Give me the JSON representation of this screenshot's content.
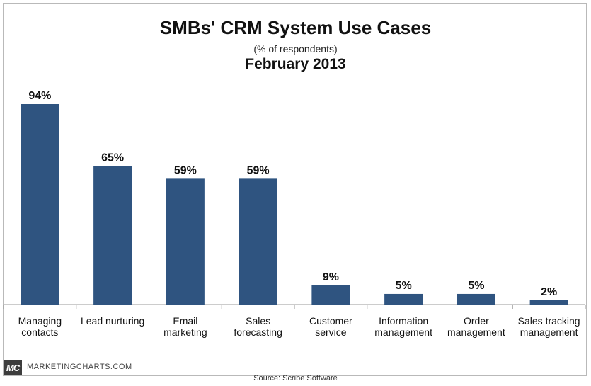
{
  "chart_data": {
    "type": "bar",
    "title": "SMBs' CRM System Use Cases",
    "subtitle": "(% of respondents)",
    "date": "February 2013",
    "categories": [
      [
        "Managing",
        "contacts"
      ],
      [
        "Lead nurturing"
      ],
      [
        "Email",
        "marketing"
      ],
      [
        "Sales",
        "forecasting"
      ],
      [
        "Customer",
        "service"
      ],
      [
        "Information",
        "management"
      ],
      [
        "Order",
        "management"
      ],
      [
        "Sales tracking",
        "management"
      ]
    ],
    "values": [
      94,
      65,
      59,
      59,
      9,
      5,
      5,
      2
    ],
    "value_labels": [
      "94%",
      "65%",
      "59%",
      "59%",
      "9%",
      "5%",
      "5%",
      "2%"
    ],
    "ylim": [
      0,
      100
    ],
    "grid": false,
    "bar_color": "#2f5480"
  },
  "branding": {
    "logo_text": "MC",
    "site_name": "MARKETINGCHARTS.COM"
  },
  "source": "Source: Scribe Software"
}
